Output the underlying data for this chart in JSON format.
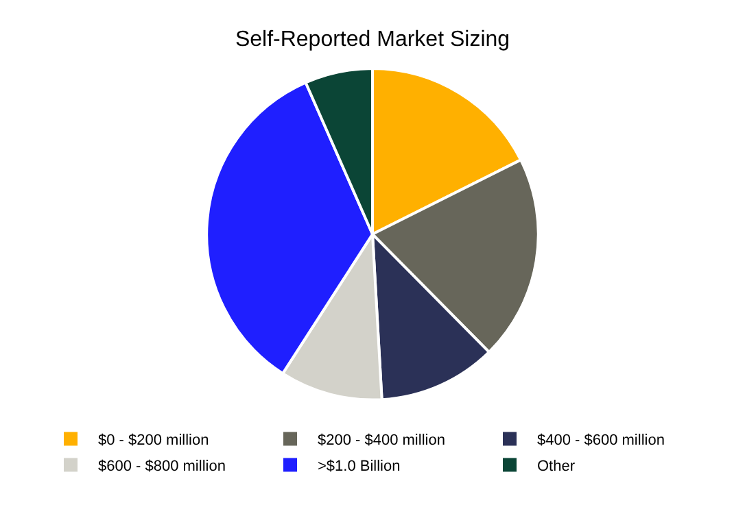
{
  "chart_data": {
    "type": "pie",
    "title": "Self-Reported Market Sizing",
    "categories": [
      "$0 - $200 million",
      "$200 - $400 million",
      "$400 - $600 million",
      "$600 - $800 million",
      ">$1.0 Billion",
      "Other"
    ],
    "values": [
      17.6,
      20,
      11.5,
      10,
      34.3,
      6.6
    ],
    "colors": [
      "#ffb000",
      "#67665a",
      "#2b3157",
      "#d3d2ca",
      "#1f1fff",
      "#0b4536"
    ],
    "legend": "bottom"
  }
}
